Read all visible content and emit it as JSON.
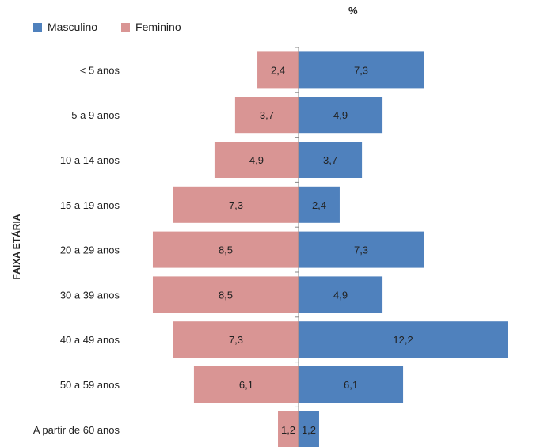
{
  "chart_data": {
    "type": "bar",
    "orientation": "horizontal-diverging",
    "title": "%",
    "ylabel": "FAIXA ETÁRIA",
    "categories": [
      "< 5 anos",
      "5 a 9 anos",
      "10 a 14 anos",
      "15 a 19 anos",
      "20 a 29 anos",
      "30 a 39 anos",
      "40 a 49 anos",
      "50 a 59 anos",
      "A partir de 60 anos"
    ],
    "series": [
      {
        "name": "Masculino",
        "color": "#4f81bd",
        "values": [
          7.3,
          4.9,
          3.7,
          2.4,
          7.3,
          4.9,
          12.2,
          6.1,
          1.2
        ],
        "labels": [
          "7,3",
          "4,9",
          "3,7",
          "2,4",
          "7,3",
          "4,9",
          "12,2",
          "6,1",
          "1,2"
        ]
      },
      {
        "name": "Feminino",
        "color": "#d99594",
        "values": [
          2.4,
          3.7,
          4.9,
          7.3,
          8.5,
          8.5,
          7.3,
          6.1,
          1.2
        ],
        "labels": [
          "2,4",
          "3,7",
          "4,9",
          "7,3",
          "8,5",
          "8,5",
          "7,3",
          "6,1",
          "1,2"
        ]
      }
    ],
    "legend_position": "top-left",
    "grid": false
  }
}
